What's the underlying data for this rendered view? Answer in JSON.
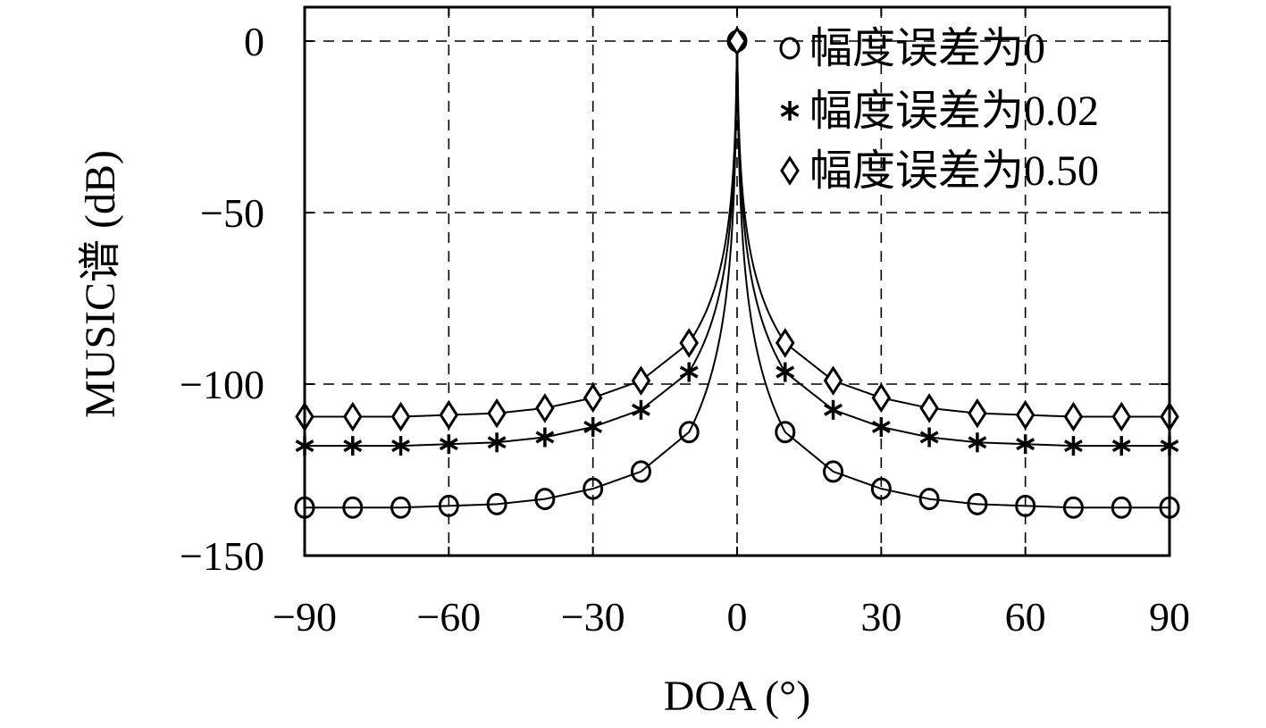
{
  "chart_data": {
    "type": "line",
    "xlabel": "DOA (°)",
    "ylabel": "MUSIC谱 (dB)",
    "xlim": [
      -90,
      90
    ],
    "ylim": [
      -150,
      10
    ],
    "xticks": [
      -90,
      -60,
      -30,
      0,
      30,
      60,
      90
    ],
    "yticks": [
      0,
      -50,
      -100,
      -150
    ],
    "xtick_labels": [
      "−90",
      "−60",
      "−30",
      "0",
      "30",
      "60",
      "90"
    ],
    "ytick_labels": [
      "0",
      "−50",
      "−100",
      "−150"
    ],
    "grid": true,
    "legend_position": "top-right",
    "x": [
      -90,
      -80,
      -70,
      -60,
      -50,
      -40,
      -30,
      -20,
      -10,
      0,
      10,
      20,
      30,
      40,
      50,
      60,
      70,
      80,
      90
    ],
    "series": [
      {
        "name": "幅度误差为0",
        "marker": "circle",
        "values": [
          -136,
          -136,
          -136,
          -135.5,
          -135,
          -133.5,
          -130.5,
          -125.5,
          -114,
          0,
          -114,
          -125.5,
          -130.5,
          -133.5,
          -135,
          -135.5,
          -136,
          -136,
          -136
        ]
      },
      {
        "name": "幅度误差为0.02",
        "marker": "asterisk",
        "values": [
          -118,
          -118,
          -118,
          -117.5,
          -117,
          -115.5,
          -112.5,
          -107.5,
          -96.5,
          0,
          -96.5,
          -107.5,
          -112.5,
          -115.5,
          -117,
          -117.5,
          -118,
          -118,
          -118
        ]
      },
      {
        "name": "幅度误差为0.50",
        "marker": "diamond",
        "values": [
          -109.5,
          -109.5,
          -109.5,
          -109,
          -108.5,
          -107,
          -104,
          -99,
          -88,
          0,
          -88,
          -99,
          -104,
          -107,
          -108.5,
          -109,
          -109.5,
          -109.5,
          -109.5
        ]
      }
    ]
  }
}
